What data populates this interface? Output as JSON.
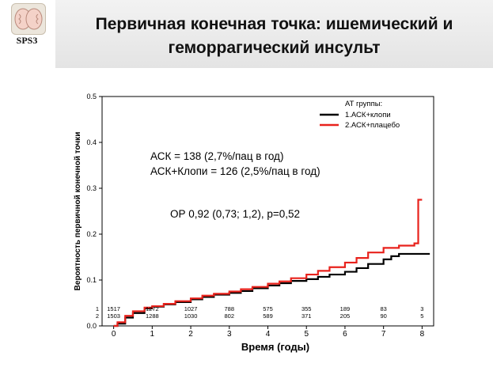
{
  "logo": {
    "text": "SPS3"
  },
  "slide": {
    "title_line1": "Первичная конечная точка: ишемический и",
    "title_line2": "геморрагический инсульт"
  },
  "chart_data": {
    "type": "line",
    "xlabel": "Время (годы)",
    "ylabel": "Вероятность первичной конечной  точки",
    "xlim": [
      -0.3,
      8.3
    ],
    "ylim": [
      0,
      0.5
    ],
    "x_ticks": [
      0,
      1,
      2,
      3,
      4,
      5,
      6,
      7,
      8
    ],
    "y_ticks": [
      {
        "v": 0.0,
        "label": "0.0"
      },
      {
        "v": 0.1,
        "label": "0.1"
      },
      {
        "v": 0.2,
        "label": "0.2"
      },
      {
        "v": 0.3,
        "label": "0.3"
      },
      {
        "v": 0.4,
        "label": "0.4"
      },
      {
        "v": 0.5,
        "label": "0.5"
      }
    ],
    "grid": false,
    "legend": {
      "title": "АТ группы:",
      "placement": "top-right",
      "entries": [
        "1.АСК+клопи",
        "2.АСК+плацебо"
      ]
    },
    "series": [
      {
        "name": "1.АСК+клопи",
        "color": "#000000",
        "points": [
          [
            0,
            0
          ],
          [
            0.1,
            0.005
          ],
          [
            0.3,
            0.018
          ],
          [
            0.5,
            0.028
          ],
          [
            0.8,
            0.038
          ],
          [
            1,
            0.042
          ],
          [
            1.3,
            0.047
          ],
          [
            1.6,
            0.052
          ],
          [
            2,
            0.058
          ],
          [
            2.3,
            0.063
          ],
          [
            2.6,
            0.068
          ],
          [
            3,
            0.072
          ],
          [
            3.3,
            0.076
          ],
          [
            3.6,
            0.082
          ],
          [
            4,
            0.088
          ],
          [
            4.3,
            0.093
          ],
          [
            4.6,
            0.098
          ],
          [
            5,
            0.102
          ],
          [
            5.3,
            0.107
          ],
          [
            5.6,
            0.112
          ],
          [
            6,
            0.118
          ],
          [
            6.3,
            0.126
          ],
          [
            6.6,
            0.135
          ],
          [
            7,
            0.145
          ],
          [
            7.2,
            0.152
          ],
          [
            7.4,
            0.157
          ],
          [
            8,
            0.157
          ],
          [
            8.2,
            0.157
          ]
        ]
      },
      {
        "name": "2.АСК+плацебо",
        "color": "#e8221c",
        "points": [
          [
            0,
            0
          ],
          [
            0.1,
            0.008
          ],
          [
            0.3,
            0.022
          ],
          [
            0.5,
            0.032
          ],
          [
            0.8,
            0.04
          ],
          [
            1,
            0.043
          ],
          [
            1.3,
            0.048
          ],
          [
            1.6,
            0.054
          ],
          [
            2,
            0.06
          ],
          [
            2.3,
            0.066
          ],
          [
            2.6,
            0.07
          ],
          [
            3,
            0.075
          ],
          [
            3.3,
            0.08
          ],
          [
            3.6,
            0.085
          ],
          [
            4,
            0.092
          ],
          [
            4.3,
            0.097
          ],
          [
            4.6,
            0.104
          ],
          [
            5,
            0.112
          ],
          [
            5.3,
            0.12
          ],
          [
            5.6,
            0.128
          ],
          [
            6,
            0.138
          ],
          [
            6.3,
            0.148
          ],
          [
            6.6,
            0.16
          ],
          [
            7,
            0.17
          ],
          [
            7.4,
            0.175
          ],
          [
            7.8,
            0.18
          ],
          [
            7.9,
            0.275
          ],
          [
            8,
            0.275
          ]
        ]
      }
    ],
    "annotations": [
      "АСК = 138 (2,7%/пац в год)",
      "АСК+Клопи = 126 (2,5%/пац в год)",
      "ОР 0,92 (0,73; 1,2), p=0,52"
    ],
    "at_risk": {
      "rows": [
        {
          "label": "1",
          "values": [
            "1517",
            "1272",
            "1027",
            "788",
            "575",
            "355",
            "189",
            "83",
            "3"
          ]
        },
        {
          "label": "2",
          "values": [
            "1503",
            "1288",
            "1030",
            "802",
            "589",
            "371",
            "205",
            "90",
            "5"
          ]
        }
      ]
    }
  }
}
